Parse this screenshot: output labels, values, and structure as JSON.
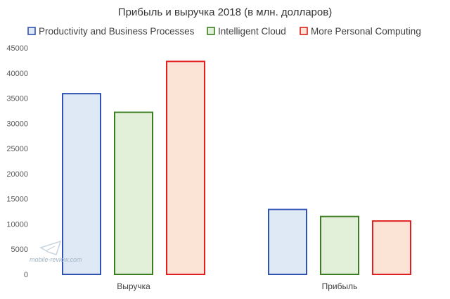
{
  "chart_data": {
    "type": "bar",
    "title": "Прибыль и выручка 2018 (в млн. долларов)",
    "categories": [
      "Выручка",
      "Прибыль"
    ],
    "series": [
      {
        "name": "Productivity and Business Processes",
        "values": [
          35900,
          12900
        ],
        "stroke": "#2f52b3",
        "fill": "#dfe9f6"
      },
      {
        "name": "Intelligent Cloud",
        "values": [
          32200,
          11500
        ],
        "stroke": "#3c7d22",
        "fill": "#e3f0d9"
      },
      {
        "name": "More Personal Computing",
        "values": [
          42300,
          10600
        ],
        "stroke": "#e02020",
        "fill": "#fbe3d6"
      }
    ],
    "xlabel": "",
    "ylabel": "",
    "ylim": [
      0,
      45000
    ],
    "yticks": [
      0,
      5000,
      10000,
      15000,
      20000,
      25000,
      30000,
      35000,
      40000,
      45000
    ],
    "grid": false,
    "legend_position": "top"
  },
  "watermark": {
    "text": "mobile-review.com",
    "icon": "mobile-review-logo-icon"
  }
}
